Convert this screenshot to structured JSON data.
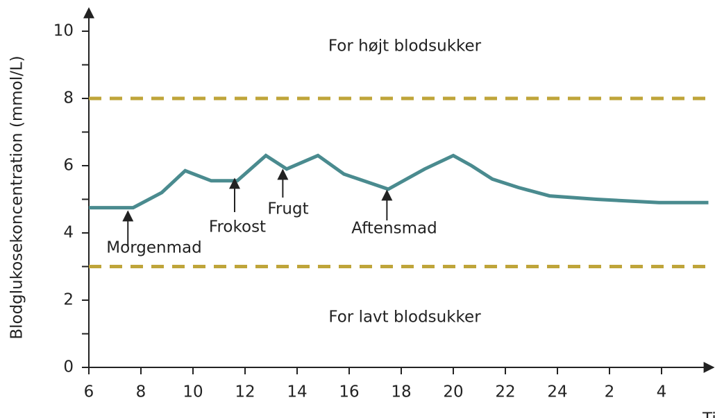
{
  "chart_data": {
    "type": "line",
    "ylabel": "Blodglukosekoncentration (mmol/L)",
    "xlabel": "Tid",
    "xlim": [
      6,
      30
    ],
    "ylim": [
      0,
      10
    ],
    "xticks": [
      6,
      8,
      10,
      12,
      14,
      16,
      18,
      20,
      22,
      24,
      {
        "value": 26,
        "label": "2"
      },
      {
        "value": 28,
        "label": "4"
      }
    ],
    "yticks": [
      0,
      2,
      4,
      6,
      8,
      10
    ],
    "yticks_minor": [
      1,
      3,
      5,
      7,
      9
    ],
    "series": [
      {
        "color": "#4a8b8f",
        "x": [
          6,
          7.7,
          8.8,
          9.7,
          10.7,
          11.7,
          12.8,
          13.6,
          14.8,
          15.8,
          17.5,
          18.9,
          20,
          20.7,
          21.5,
          22.5,
          23.7,
          25.5,
          27.9,
          29.8
        ],
        "values": [
          4.75,
          4.75,
          5.2,
          5.85,
          5.55,
          5.55,
          6.3,
          5.9,
          6.3,
          5.75,
          5.3,
          5.9,
          6.3,
          6.0,
          5.6,
          5.35,
          5.1,
          5.0,
          4.9,
          4.9
        ]
      }
    ],
    "thresholds": [
      8,
      3
    ],
    "threshold_color": "#bfa53a",
    "regions": [
      {
        "label": "For højt blodsukker"
      },
      {
        "label": "For lavt blodsukker"
      }
    ],
    "annotations": [
      {
        "text": "Morgenmad",
        "x": 7.5
      },
      {
        "text": "Frokost",
        "x": 11.6
      },
      {
        "text": "Frugt",
        "x": 13.45
      },
      {
        "text": "Aftensmad",
        "x": 17.45
      }
    ]
  }
}
